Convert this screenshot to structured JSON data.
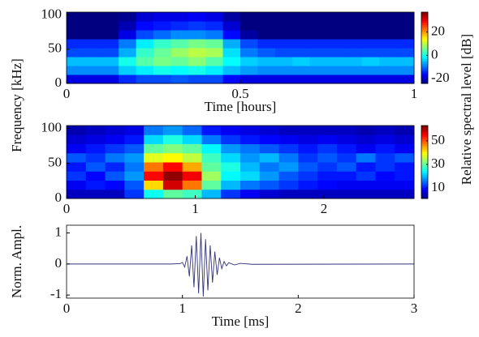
{
  "chart_data": [
    {
      "type": "heatmap",
      "xlabel": "Time [hours]",
      "ylabel": "Frequency [kHz]",
      "colorbar_label": "Relative spectral level [dB]",
      "xlim": [
        0,
        1
      ],
      "ylim": [
        0,
        104
      ],
      "xticks": [
        0,
        0.5,
        1
      ],
      "yticks": [
        0,
        50,
        100
      ],
      "clim": [
        -24,
        37
      ],
      "cticks": [
        20,
        0,
        -20
      ],
      "z": [
        [
          -18,
          -18,
          -18,
          -14,
          -12,
          -12,
          -11,
          -12,
          -12,
          -16,
          -18,
          -18,
          -18,
          -18,
          -18,
          -18,
          -18,
          -18,
          -18,
          -18
        ],
        [
          -8,
          -8,
          -8,
          -4,
          -2,
          0,
          -1,
          0,
          -2,
          -5,
          -7,
          -8,
          -8,
          -8,
          -8,
          -8,
          -8,
          -8,
          -8,
          -8
        ],
        [
          -5,
          -5,
          -5,
          0,
          4,
          6,
          5,
          7,
          4,
          -1,
          -4,
          -5,
          -5,
          -4,
          -5,
          -5,
          -5,
          -4,
          -5,
          -5
        ],
        [
          -12,
          -12,
          -12,
          -6,
          2,
          5,
          8,
          10,
          9,
          -3,
          -9,
          -11,
          -12,
          -12,
          -12,
          -12,
          -12,
          -12,
          -12,
          -12
        ],
        [
          -14,
          -14,
          -14,
          -9,
          -2,
          2,
          4,
          6,
          5,
          -6,
          -12,
          -14,
          -14,
          -14,
          -14,
          -14,
          -14,
          -14,
          -14,
          -14
        ],
        [
          -24,
          -24,
          -24,
          -18,
          -12,
          -10,
          -8,
          -8,
          -9,
          -16,
          -22,
          -24,
          -24,
          -24,
          -24,
          -24,
          -24,
          -24,
          -24,
          -24
        ],
        [
          -25,
          -25,
          -25,
          -21,
          -16,
          -15,
          -14,
          -13,
          -14,
          -19,
          -24,
          -25,
          -25,
          -25,
          -25,
          -25,
          -25,
          -25,
          -25,
          -25
        ],
        [
          -26,
          -26,
          -26,
          -23,
          -19,
          -18,
          -18,
          -17,
          -18,
          -22,
          -25,
          -26,
          -26,
          -26,
          -26,
          -26,
          -26,
          -26,
          -26,
          -26
        ]
      ]
    },
    {
      "type": "heatmap",
      "xlim": [
        0,
        2.7
      ],
      "ylim": [
        0,
        104
      ],
      "xticks": [
        0,
        1,
        2
      ],
      "yticks": [
        0,
        50,
        100
      ],
      "clim": [
        1,
        63
      ],
      "cticks": [
        50,
        30,
        10
      ],
      "z": [
        [
          5,
          5,
          5,
          12,
          25,
          30,
          28,
          20,
          12,
          8,
          6,
          5,
          5,
          5,
          5,
          5,
          5,
          5
        ],
        [
          8,
          10,
          9,
          14,
          42,
          58,
          48,
          30,
          20,
          16,
          14,
          12,
          10,
          9,
          8,
          8,
          8,
          8
        ],
        [
          12,
          9,
          14,
          18,
          55,
          62,
          56,
          34,
          24,
          22,
          18,
          14,
          12,
          10,
          10,
          12,
          9,
          10
        ],
        [
          10,
          14,
          11,
          16,
          48,
          55,
          45,
          30,
          26,
          20,
          16,
          18,
          14,
          12,
          14,
          10,
          12,
          10
        ],
        [
          14,
          12,
          16,
          18,
          38,
          40,
          36,
          28,
          22,
          18,
          20,
          16,
          12,
          14,
          12,
          16,
          12,
          14
        ],
        [
          8,
          10,
          12,
          14,
          30,
          32,
          30,
          24,
          18,
          16,
          14,
          12,
          10,
          12,
          10,
          8,
          10,
          8
        ],
        [
          6,
          7,
          8,
          10,
          22,
          26,
          22,
          16,
          12,
          10,
          9,
          8,
          7,
          8,
          7,
          6,
          7,
          6
        ],
        [
          4,
          5,
          6,
          7,
          16,
          18,
          15,
          10,
          8,
          7,
          6,
          5,
          5,
          5,
          5,
          4,
          5,
          4
        ]
      ]
    },
    {
      "type": "line",
      "xlabel": "Time [ms]",
      "ylabel": "Norm. Ampl.",
      "xlim": [
        0,
        3
      ],
      "ylim": [
        -1.1,
        1.25
      ],
      "xticks": [
        0,
        1,
        2,
        3
      ],
      "yticks": [
        -1,
        0,
        1
      ],
      "color": "#33337a",
      "x": [
        0,
        0.9,
        0.98,
        1.0,
        1.02,
        1.04,
        1.06,
        1.08,
        1.1,
        1.12,
        1.14,
        1.16,
        1.18,
        1.2,
        1.22,
        1.24,
        1.26,
        1.28,
        1.3,
        1.32,
        1.34,
        1.36,
        1.38,
        1.4,
        1.45,
        1.5,
        1.6,
        3
      ],
      "values": [
        0,
        0,
        0.01,
        0.05,
        -0.1,
        0.25,
        -0.4,
        0.6,
        -0.75,
        0.9,
        -0.95,
        1.0,
        -1.05,
        0.8,
        -0.85,
        0.6,
        -0.6,
        0.4,
        -0.35,
        0.2,
        -0.15,
        0.08,
        -0.06,
        0.04,
        -0.03,
        0.02,
        -0.01,
        0
      ]
    }
  ]
}
